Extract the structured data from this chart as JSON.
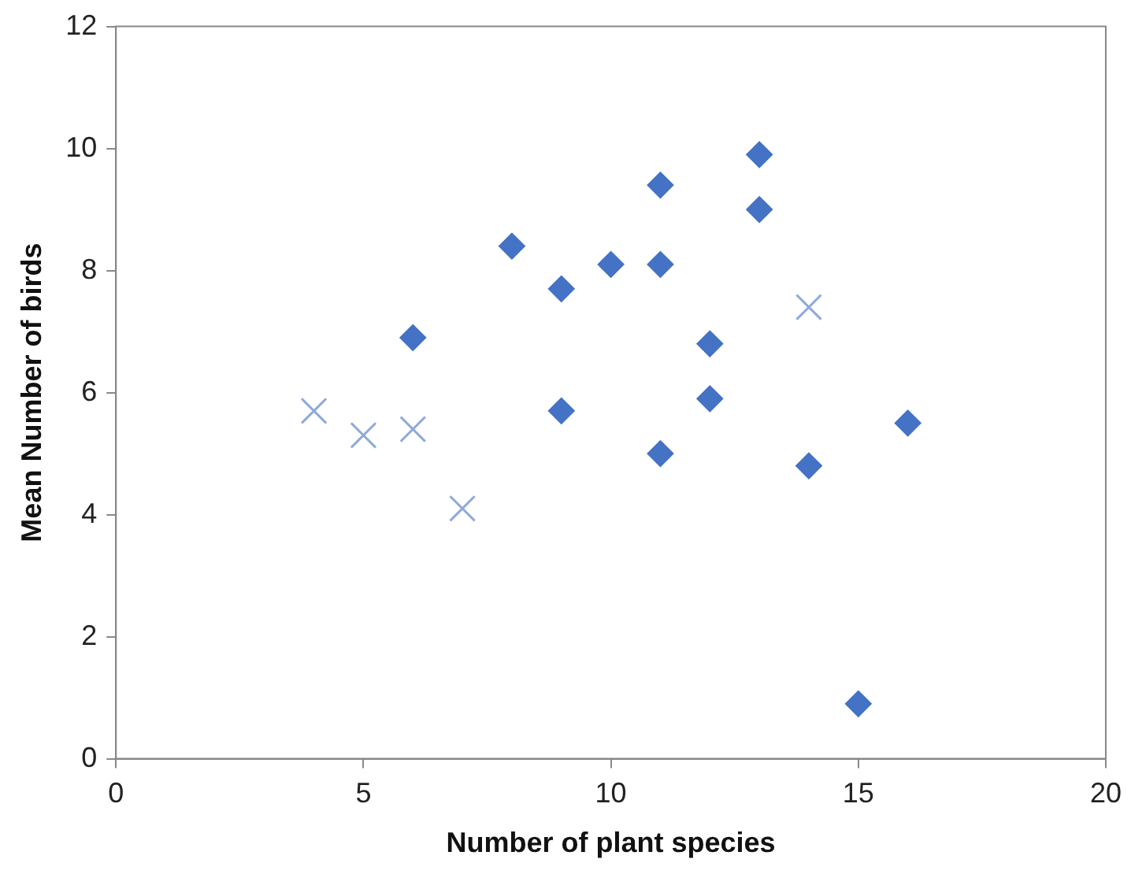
{
  "chart_data": {
    "type": "scatter",
    "xlabel": "Number of plant species",
    "ylabel": "Mean Number of birds",
    "xlim": [
      0,
      20
    ],
    "xticks": [
      0,
      5,
      10,
      15,
      20
    ],
    "ylim": [
      0,
      12
    ],
    "yticks": [
      0,
      2,
      4,
      6,
      8,
      10,
      12
    ],
    "grid": false,
    "legend": false,
    "series": [
      {
        "color": "#4472c4",
        "marker": "diamond",
        "x": [
          6,
          8,
          9,
          9,
          10,
          11,
          11,
          11,
          12,
          12,
          13,
          13,
          14,
          15,
          16
        ],
        "values": [
          6.9,
          8.4,
          7.7,
          5.7,
          8.1,
          9.4,
          8.1,
          5.0,
          6.8,
          5.9,
          9.9,
          9.0,
          4.8,
          0.9,
          5.5
        ]
      },
      {
        "color": "#8eaadb",
        "marker": "cross",
        "x": [
          4,
          5,
          6,
          7,
          14
        ],
        "values": [
          5.7,
          5.3,
          5.4,
          4.1,
          7.4
        ]
      }
    ]
  }
}
